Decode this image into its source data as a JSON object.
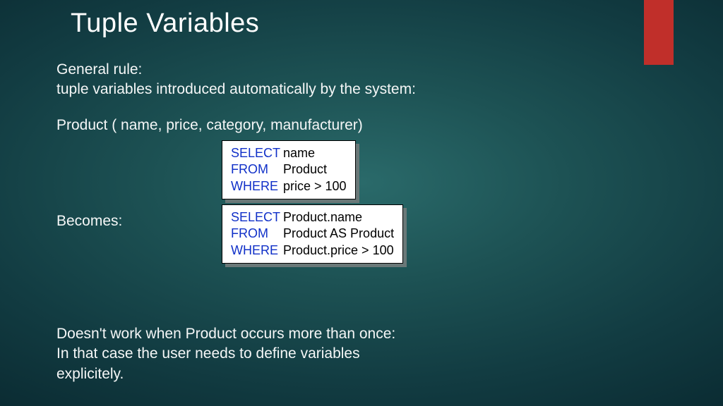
{
  "accent_color": "#c02f2a",
  "title": "Tuple Variables",
  "para1_line1": "General rule:",
  "para1_line2": "tuple variables introduced automatically by the system:",
  "para2": "Product ( name,  price, category, manufacturer)",
  "becomes": "Becomes:",
  "footer_line1": "Doesn't work when Product occurs more than once:",
  "footer_line2": "In that case the user needs to define variables",
  "footer_line3": "explicitely.",
  "code1": {
    "kw_select": "SELECT",
    "select_rest": "name",
    "kw_from": "FROM",
    "from_rest": "Product",
    "kw_where": "WHERE",
    "where_rest": "price > 100",
    "kw_color": "#1030c8",
    "box_bg": "#ffffff",
    "box_border": "#000000",
    "shadow_color": "#6a7878",
    "fontsize": 18
  },
  "code2": {
    "kw_select": "SELECT",
    "select_rest": "Product.name",
    "kw_from": "FROM",
    "from_rest": "Product AS Product",
    "kw_where": "WHERE",
    "where_rest": "Product.price > 100",
    "kw_color": "#1030c8",
    "box_bg": "#ffffff",
    "box_border": "#000000",
    "shadow_color": "#6a7878",
    "fontsize": 18
  },
  "style": {
    "title_fontsize": 38,
    "body_fontsize": 21,
    "text_color": "#ffffff",
    "background_gradient_center": "#2a6a6a",
    "background_gradient_edge": "#0b2c33"
  }
}
